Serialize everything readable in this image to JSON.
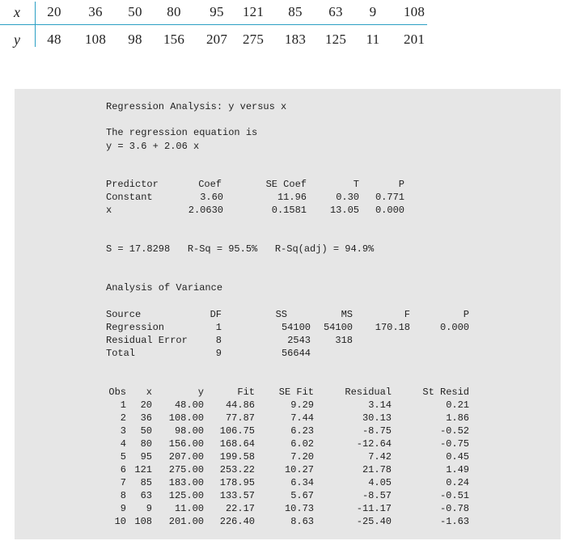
{
  "data_table": {
    "x_label": "x",
    "y_label": "y",
    "x_values": [
      "20",
      "36",
      "50",
      "80",
      "95",
      "121",
      "85",
      "63",
      "9",
      "108"
    ],
    "y_values": [
      "48",
      "108",
      "98",
      "156",
      "207",
      "275",
      "183",
      "125",
      "11",
      "201"
    ]
  },
  "output": {
    "title": "Regression Analysis: y versus x",
    "equation_intro": "The regression equation is",
    "equation": "y = 3.6 + 2.06 x",
    "coef_table": {
      "headers": [
        "Predictor",
        "Coef",
        "SE Coef",
        "T",
        "P"
      ],
      "rows": [
        [
          "Constant",
          "3.60",
          "11.96",
          "0.30",
          "0.771"
        ],
        [
          "x",
          "2.0630",
          "0.1581",
          "13.05",
          "0.000"
        ]
      ]
    },
    "summary": "S = 17.8298   R-Sq = 95.5%   R-Sq(adj) = 94.9%",
    "anova_title": "Analysis of Variance",
    "anova_table": {
      "headers": [
        "Source",
        "DF",
        "SS",
        "MS",
        "F",
        "P"
      ],
      "rows": [
        [
          "Regression",
          "1",
          "54100",
          "54100",
          "170.18",
          "0.000"
        ],
        [
          "Residual Error",
          "8",
          "2543",
          "318",
          "",
          ""
        ],
        [
          "Total",
          "9",
          "56644",
          "",
          "",
          ""
        ]
      ]
    },
    "obs_table": {
      "headers": [
        "Obs",
        "x",
        "y",
        "Fit",
        "SE Fit",
        "Residual",
        "St Resid"
      ],
      "rows": [
        [
          "1",
          "20",
          "48.00",
          "44.86",
          "9.29",
          "3.14",
          "0.21"
        ],
        [
          "2",
          "36",
          "108.00",
          "77.87",
          "7.44",
          "30.13",
          "1.86"
        ],
        [
          "3",
          "50",
          "98.00",
          "106.75",
          "6.23",
          "-8.75",
          "-0.52"
        ],
        [
          "4",
          "80",
          "156.00",
          "168.64",
          "6.02",
          "-12.64",
          "-0.75"
        ],
        [
          "5",
          "95",
          "207.00",
          "199.58",
          "7.20",
          "7.42",
          "0.45"
        ],
        [
          "6",
          "121",
          "275.00",
          "253.22",
          "10.27",
          "21.78",
          "1.49"
        ],
        [
          "7",
          "85",
          "183.00",
          "178.95",
          "6.34",
          "4.05",
          "0.24"
        ],
        [
          "8",
          "63",
          "125.00",
          "133.57",
          "5.67",
          "-8.57",
          "-0.51"
        ],
        [
          "9",
          "9",
          "11.00",
          "22.17",
          "10.73",
          "-11.17",
          "-0.78"
        ],
        [
          "10",
          "108",
          "201.00",
          "226.40",
          "8.63",
          "-25.40",
          "-1.63"
        ]
      ]
    }
  }
}
